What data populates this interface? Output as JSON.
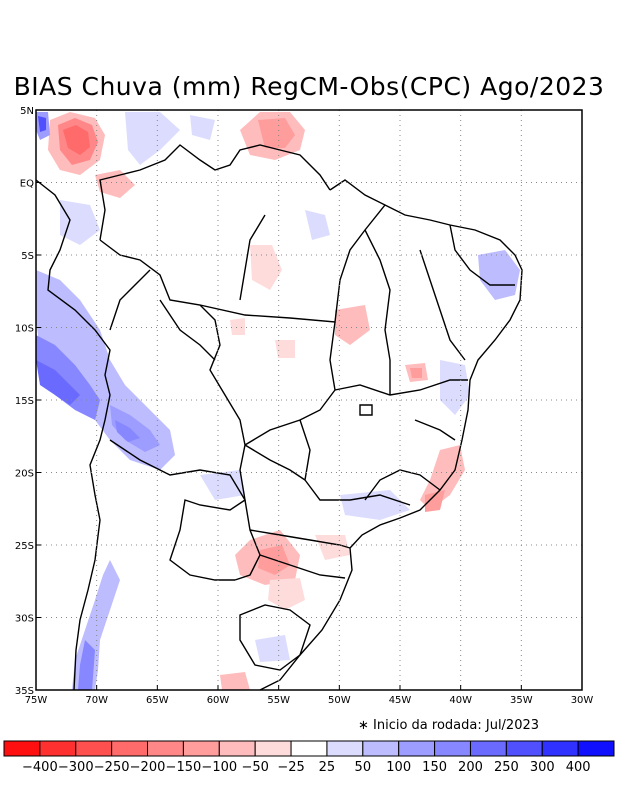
{
  "title": "BIAS Chuva (mm) RegCM-Obs(CPC) Ago/2023",
  "note": "∗ Inicio da rodada: Jul/2023",
  "map": {
    "lon_range": [
      -75,
      -30
    ],
    "lat_range": [
      -35,
      5
    ],
    "x_ticks": [
      "75W",
      "70W",
      "65W",
      "60W",
      "55W",
      "50W",
      "45W",
      "40W",
      "35W",
      "30W"
    ],
    "y_ticks": [
      "5N",
      "EQ",
      "5S",
      "10S",
      "15S",
      "20S",
      "25S",
      "30S",
      "35S"
    ],
    "grid": true
  },
  "colorbar": {
    "colors": [
      "#ff1010",
      "#ff3030",
      "#ff5050",
      "#ff6a6a",
      "#ff8787",
      "#ff9d9d",
      "#ffbcbc",
      "#ffdcdc",
      "#ffffff",
      "#dcdcff",
      "#bcbcff",
      "#9d9dff",
      "#8787ff",
      "#6a6aff",
      "#5050ff",
      "#3030ff",
      "#1010ff"
    ],
    "labels": [
      "-400",
      "-300",
      "-250",
      "-200",
      "-150",
      "-100",
      "-50",
      "-25",
      "25",
      "50",
      "100",
      "150",
      "200",
      "250",
      "300",
      "400"
    ]
  }
}
